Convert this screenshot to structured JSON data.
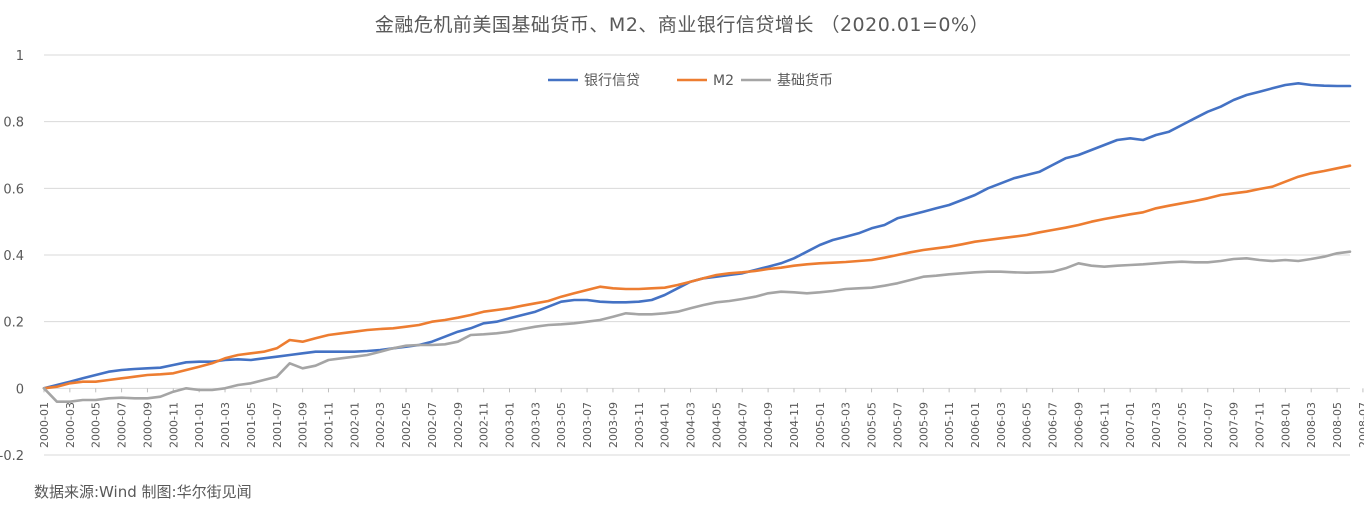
{
  "chart_data": {
    "type": "line",
    "title": "金融危机前美国基础货币、M2、商业银行信贷增长  （2020.01=0%）",
    "xlabel": "",
    "ylabel": "",
    "ylim": [
      -0.2,
      1
    ],
    "yticks": [
      "-0.2",
      "0",
      "0.2",
      "0.4",
      "0.6",
      "0.8",
      "1"
    ],
    "grid": true,
    "legend_position": "top-center",
    "x_tick_labels": [
      "2000-01",
      "2000-03",
      "2000-05",
      "2000-07",
      "2000-09",
      "2000-11",
      "2001-01",
      "2001-03",
      "2001-05",
      "2001-07",
      "2001-09",
      "2001-11",
      "2002-01",
      "2002-03",
      "2002-05",
      "2002-07",
      "2002-09",
      "2002-11",
      "2003-01",
      "2003-03",
      "2003-05",
      "2003-07",
      "2003-09",
      "2003-11",
      "2004-01",
      "2004-03",
      "2004-05",
      "2004-07",
      "2004-09",
      "2004-11",
      "2005-01",
      "2005-03",
      "2005-05",
      "2005-07",
      "2005-09",
      "2005-11",
      "2006-01",
      "2006-03",
      "2006-05",
      "2006-07",
      "2006-09",
      "2006-11",
      "2007-01",
      "2007-03",
      "2007-05",
      "2007-07",
      "2007-09",
      "2007-11",
      "2008-01",
      "2008-03",
      "2008-05",
      "2008-07"
    ],
    "series": [
      {
        "name": "银行信贷",
        "color": "#4472c4",
        "values": [
          0.0,
          0.01,
          0.02,
          0.03,
          0.04,
          0.05,
          0.055,
          0.058,
          0.06,
          0.062,
          0.07,
          0.078,
          0.08,
          0.08,
          0.085,
          0.087,
          0.085,
          0.09,
          0.095,
          0.1,
          0.105,
          0.11,
          0.11,
          0.11,
          0.11,
          0.112,
          0.115,
          0.12,
          0.125,
          0.13,
          0.14,
          0.155,
          0.17,
          0.18,
          0.195,
          0.2,
          0.21,
          0.22,
          0.23,
          0.245,
          0.26,
          0.265,
          0.265,
          0.26,
          0.258,
          0.258,
          0.26,
          0.265,
          0.28,
          0.3,
          0.32,
          0.33,
          0.335,
          0.34,
          0.345,
          0.355,
          0.365,
          0.375,
          0.39,
          0.41,
          0.43,
          0.445,
          0.455,
          0.465,
          0.48,
          0.49,
          0.51,
          0.52,
          0.53,
          0.54,
          0.55,
          0.565,
          0.58,
          0.6,
          0.615,
          0.63,
          0.64,
          0.65,
          0.67,
          0.69,
          0.7,
          0.715,
          0.73,
          0.745,
          0.75,
          0.745,
          0.76,
          0.77,
          0.79,
          0.81,
          0.83,
          0.845,
          0.865,
          0.88,
          0.89,
          0.9,
          0.91,
          0.915,
          0.91,
          0.908,
          0.907,
          0.907
        ]
      },
      {
        "name": "M2",
        "color": "#ed7d31",
        "values": [
          0.0,
          0.005,
          0.015,
          0.02,
          0.02,
          0.025,
          0.03,
          0.035,
          0.04,
          0.042,
          0.045,
          0.055,
          0.065,
          0.075,
          0.09,
          0.1,
          0.105,
          0.11,
          0.12,
          0.145,
          0.14,
          0.15,
          0.16,
          0.165,
          0.17,
          0.175,
          0.178,
          0.18,
          0.185,
          0.19,
          0.2,
          0.205,
          0.212,
          0.22,
          0.23,
          0.235,
          0.24,
          0.248,
          0.255,
          0.262,
          0.275,
          0.285,
          0.295,
          0.305,
          0.3,
          0.298,
          0.298,
          0.3,
          0.302,
          0.31,
          0.32,
          0.33,
          0.34,
          0.345,
          0.348,
          0.352,
          0.358,
          0.362,
          0.368,
          0.372,
          0.375,
          0.377,
          0.379,
          0.382,
          0.385,
          0.392,
          0.4,
          0.408,
          0.415,
          0.42,
          0.425,
          0.432,
          0.44,
          0.445,
          0.45,
          0.455,
          0.46,
          0.468,
          0.475,
          0.482,
          0.49,
          0.5,
          0.508,
          0.515,
          0.522,
          0.528,
          0.54,
          0.548,
          0.555,
          0.562,
          0.57,
          0.58,
          0.585,
          0.59,
          0.598,
          0.605,
          0.62,
          0.635,
          0.645,
          0.652,
          0.66,
          0.668
        ]
      },
      {
        "name": "基础货币",
        "color": "#a5a5a5",
        "values": [
          0.0,
          -0.04,
          -0.04,
          -0.035,
          -0.035,
          -0.03,
          -0.028,
          -0.03,
          -0.03,
          -0.025,
          -0.01,
          0.0,
          -0.005,
          -0.005,
          0.0,
          0.01,
          0.015,
          0.025,
          0.035,
          0.075,
          0.06,
          0.068,
          0.085,
          0.09,
          0.095,
          0.1,
          0.11,
          0.12,
          0.128,
          0.13,
          0.13,
          0.132,
          0.14,
          0.16,
          0.162,
          0.165,
          0.17,
          0.178,
          0.185,
          0.19,
          0.192,
          0.195,
          0.2,
          0.205,
          0.215,
          0.225,
          0.222,
          0.222,
          0.225,
          0.23,
          0.24,
          0.25,
          0.258,
          0.262,
          0.268,
          0.275,
          0.285,
          0.29,
          0.288,
          0.285,
          0.288,
          0.292,
          0.298,
          0.3,
          0.302,
          0.308,
          0.315,
          0.325,
          0.335,
          0.338,
          0.342,
          0.345,
          0.348,
          0.35,
          0.35,
          0.348,
          0.347,
          0.348,
          0.35,
          0.36,
          0.375,
          0.368,
          0.365,
          0.368,
          0.37,
          0.372,
          0.375,
          0.378,
          0.38,
          0.378,
          0.378,
          0.382,
          0.388,
          0.39,
          0.385,
          0.382,
          0.385,
          0.382,
          0.388,
          0.395,
          0.405,
          0.41
        ]
      }
    ]
  },
  "source_note": "数据来源:Wind   制图:华尔街见闻"
}
